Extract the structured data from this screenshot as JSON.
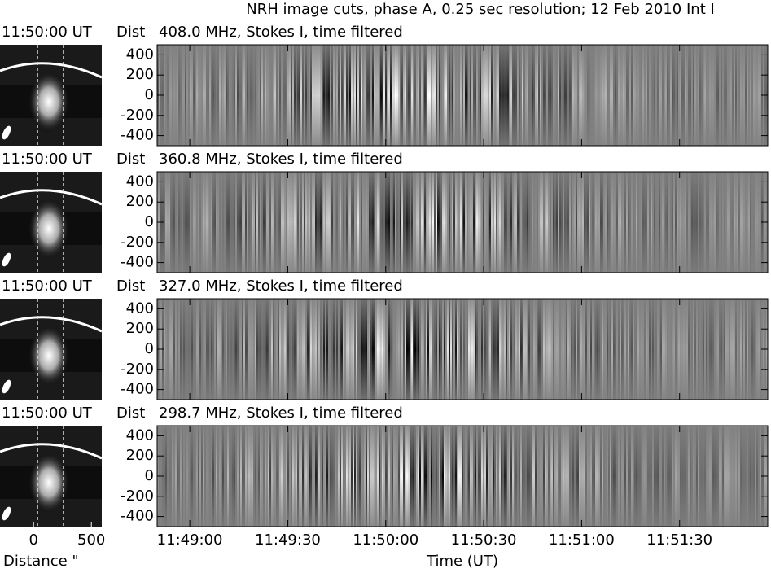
{
  "title": "NRH image cuts, phase A, 0.25 sec resolution; 12 Feb 2010 Int I",
  "chart_data": [
    {
      "type": "heatmap",
      "time_label": "11:50:00 UT",
      "y_label": "Dist",
      "title": "408.0 MHz, Stokes I, time filtered",
      "ylim": [
        -500,
        500
      ],
      "yticks": [
        400,
        200,
        0,
        -200,
        -400
      ]
    },
    {
      "type": "heatmap",
      "time_label": "11:50:00 UT",
      "y_label": "Dist",
      "title": "360.8 MHz, Stokes I, time filtered",
      "ylim": [
        -500,
        500
      ],
      "yticks": [
        400,
        200,
        0,
        -200,
        -400
      ]
    },
    {
      "type": "heatmap",
      "time_label": "11:50:00 UT",
      "y_label": "Dist",
      "title": "327.0 MHz, Stokes I, time filtered",
      "ylim": [
        -500,
        500
      ],
      "yticks": [
        400,
        200,
        0,
        -200,
        -400
      ]
    },
    {
      "type": "heatmap",
      "time_label": "11:50:00 UT",
      "y_label": "Dist",
      "title": "298.7 MHz, Stokes I, time filtered",
      "ylim": [
        -500,
        500
      ],
      "yticks": [
        400,
        200,
        0,
        -200,
        -400
      ]
    }
  ],
  "time_axis": {
    "label": "Time (UT)",
    "xlim": [
      "11:48:50",
      "11:51:57"
    ],
    "xticks": [
      "11:49:00",
      "11:49:30",
      "11:50:00",
      "11:50:30",
      "11:51:00",
      "11:51:30"
    ]
  },
  "distance_axis": {
    "label": "Distance \"",
    "xlim": [
      -290,
      590
    ],
    "xticks": [
      0,
      500
    ]
  }
}
